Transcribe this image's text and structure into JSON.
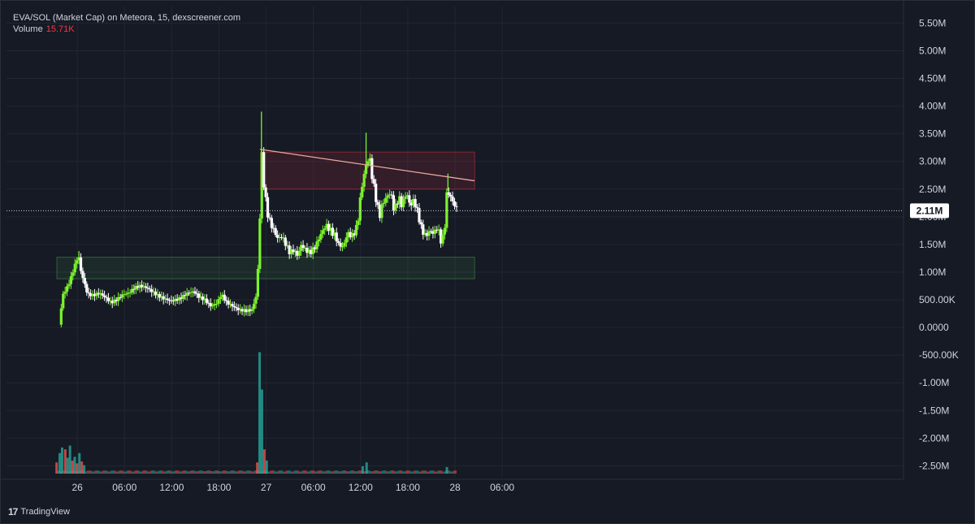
{
  "legend": {
    "title": "EVA/SOL (Market Cap) on Meteora, 15, dexscreener.com",
    "volume_label": "Volume",
    "volume_value": "15.71K"
  },
  "branding": {
    "logo_text": "TradingView"
  },
  "colors": {
    "background": "#161a25",
    "up": "#7cf22c",
    "down": "#ffffff",
    "volume_up": "#26a69a",
    "volume_down": "#ef5350",
    "resistance_zone": "#f23645",
    "support_zone": "#4caf50",
    "trendline": "#e9a8a0",
    "axis_text": "#d1d4dc"
  },
  "chart_data": {
    "type": "candlestick",
    "title": "EVA/SOL (Market Cap) on Meteora, 15, dexscreener.com",
    "y_axis": {
      "ticks": [
        5500000,
        5000000,
        4500000,
        4000000,
        3500000,
        3000000,
        2500000,
        2000000,
        1500000,
        1000000,
        500000,
        0,
        -500000,
        -1000000,
        -1500000,
        -2000000,
        -2500000
      ],
      "tick_labels": [
        "5.50M",
        "5.00M",
        "4.50M",
        "4.00M",
        "3.50M",
        "3.00M",
        "2.50M",
        "2.00M",
        "1.50M",
        "1.00M",
        "500.00K",
        "0.0000",
        "-500.00K",
        "-1.00M",
        "-1.50M",
        "-2.00M",
        "-2.50M"
      ],
      "range": [
        -2700000,
        5800000
      ]
    },
    "x_axis": {
      "range_hours": [
        -9,
        105
      ],
      "ticks": [
        {
          "hour": 0,
          "label": "26"
        },
        {
          "hour": 6,
          "label": "06:00"
        },
        {
          "hour": 12,
          "label": "12:00"
        },
        {
          "hour": 18,
          "label": "18:00"
        },
        {
          "hour": 24,
          "label": "27"
        },
        {
          "hour": 30,
          "label": "06:00"
        },
        {
          "hour": 36,
          "label": "12:00"
        },
        {
          "hour": 42,
          "label": "18:00"
        },
        {
          "hour": 48,
          "label": "28"
        },
        {
          "hour": 54,
          "label": "06:00"
        }
      ]
    },
    "last_price": {
      "value": 2110000,
      "label": "2.11M"
    },
    "price_path": [
      [
        -2.3,
        0.05
      ],
      [
        -2.1,
        0.3
      ],
      [
        -1.8,
        0.6
      ],
      [
        -1.2,
        0.75
      ],
      [
        -0.8,
        0.9
      ],
      [
        -0.5,
        1.05
      ],
      [
        -0.1,
        1.2
      ],
      [
        0.1,
        1.35
      ],
      [
        0.4,
        1.05
      ],
      [
        0.8,
        0.85
      ],
      [
        1.3,
        0.6
      ],
      [
        2.0,
        0.58
      ],
      [
        2.8,
        0.62
      ],
      [
        3.5,
        0.55
      ],
      [
        4.3,
        0.45
      ],
      [
        5.0,
        0.5
      ],
      [
        5.8,
        0.6
      ],
      [
        6.5,
        0.62
      ],
      [
        7.3,
        0.72
      ],
      [
        8.0,
        0.75
      ],
      [
        8.8,
        0.72
      ],
      [
        9.5,
        0.65
      ],
      [
        10.2,
        0.58
      ],
      [
        11.0,
        0.52
      ],
      [
        12.0,
        0.48
      ],
      [
        13.0,
        0.52
      ],
      [
        14.0,
        0.62
      ],
      [
        14.8,
        0.65
      ],
      [
        15.5,
        0.55
      ],
      [
        16.2,
        0.5
      ],
      [
        17.0,
        0.38
      ],
      [
        17.8,
        0.45
      ],
      [
        18.3,
        0.6
      ],
      [
        19.0,
        0.45
      ],
      [
        19.8,
        0.38
      ],
      [
        20.5,
        0.32
      ],
      [
        21.5,
        0.3
      ],
      [
        22.2,
        0.32
      ],
      [
        22.8,
        0.6
      ],
      [
        23.1,
        1.5
      ],
      [
        23.3,
        2.5
      ],
      [
        23.5,
        3.3
      ],
      [
        23.7,
        2.6
      ],
      [
        24.1,
        2.1
      ],
      [
        24.5,
        1.9
      ],
      [
        25.0,
        1.75
      ],
      [
        25.5,
        1.6
      ],
      [
        26.0,
        1.65
      ],
      [
        26.5,
        1.5
      ],
      [
        27.0,
        1.35
      ],
      [
        27.5,
        1.4
      ],
      [
        28.0,
        1.3
      ],
      [
        28.5,
        1.5
      ],
      [
        29.0,
        1.4
      ],
      [
        29.6,
        1.35
      ],
      [
        30.2,
        1.45
      ],
      [
        31.0,
        1.7
      ],
      [
        31.6,
        1.85
      ],
      [
        32.2,
        1.75
      ],
      [
        32.8,
        1.65
      ],
      [
        33.2,
        1.5
      ],
      [
        33.8,
        1.45
      ],
      [
        34.3,
        1.7
      ],
      [
        35.0,
        1.65
      ],
      [
        35.6,
        1.85
      ],
      [
        36.1,
        2.5
      ],
      [
        36.5,
        2.8
      ],
      [
        36.9,
        3.05
      ],
      [
        37.2,
        3.0
      ],
      [
        37.6,
        2.6
      ],
      [
        38.0,
        2.3
      ],
      [
        38.4,
        2.0
      ],
      [
        38.8,
        2.25
      ],
      [
        39.3,
        2.35
      ],
      [
        39.8,
        2.45
      ],
      [
        40.3,
        2.1
      ],
      [
        40.8,
        2.35
      ],
      [
        41.3,
        2.2
      ],
      [
        41.8,
        2.45
      ],
      [
        42.3,
        2.2
      ],
      [
        42.8,
        2.3
      ],
      [
        43.3,
        2.05
      ],
      [
        43.8,
        1.75
      ],
      [
        44.3,
        1.65
      ],
      [
        44.8,
        1.75
      ],
      [
        45.3,
        1.7
      ],
      [
        45.8,
        1.82
      ],
      [
        46.3,
        1.5
      ],
      [
        46.7,
        1.85
      ],
      [
        47.0,
        2.5
      ],
      [
        47.3,
        2.4
      ],
      [
        47.6,
        2.3
      ],
      [
        48.0,
        2.2
      ],
      [
        48.3,
        2.11
      ]
    ],
    "spikes": [
      {
        "hour": 0.2,
        "high": 1.38
      },
      {
        "hour": 23.4,
        "high": 3.9
      },
      {
        "hour": 36.7,
        "high": 3.52
      },
      {
        "hour": 47.1,
        "high": 2.78
      }
    ],
    "volume": [
      {
        "hour": -2.6,
        "value": 0.12,
        "up": false
      },
      {
        "hour": -2.2,
        "value": 0.22,
        "up": true
      },
      {
        "hour": -1.9,
        "value": 0.28,
        "up": true
      },
      {
        "hour": -1.5,
        "value": 0.26,
        "up": false
      },
      {
        "hour": -1.2,
        "value": 0.17,
        "up": true
      },
      {
        "hour": -0.9,
        "value": 0.3,
        "up": true
      },
      {
        "hour": -0.6,
        "value": 0.14,
        "up": false
      },
      {
        "hour": -0.3,
        "value": 0.18,
        "up": true
      },
      {
        "hour": 0.0,
        "value": 0.11,
        "up": false
      },
      {
        "hour": 0.3,
        "value": 0.22,
        "up": true
      },
      {
        "hour": 0.6,
        "value": 0.13,
        "up": false
      },
      {
        "hour": 0.9,
        "value": 0.09,
        "up": true
      },
      {
        "hour": 22.9,
        "value": 0.12,
        "up": false
      },
      {
        "hour": 23.2,
        "value": 1.3,
        "up": true
      },
      {
        "hour": 23.5,
        "value": 0.9,
        "up": true
      },
      {
        "hour": 23.8,
        "value": 0.26,
        "up": false
      },
      {
        "hour": 24.1,
        "value": 0.14,
        "up": true
      },
      {
        "hour": 36.3,
        "value": 0.08,
        "up": true
      },
      {
        "hour": 36.8,
        "value": 0.12,
        "up": true
      },
      {
        "hour": 47.0,
        "value": 0.07,
        "up": true
      }
    ],
    "resistance_zone": {
      "x0": 23.3,
      "x1": 50.5,
      "y0": 2.5,
      "y1": 3.17
    },
    "support_zone": {
      "x0": -2.6,
      "x1": 50.5,
      "y0": 0.88,
      "y1": 1.27
    },
    "trendline": {
      "x0": 23.2,
      "y0": 3.22,
      "x1": 50.5,
      "y1": 2.65
    }
  }
}
